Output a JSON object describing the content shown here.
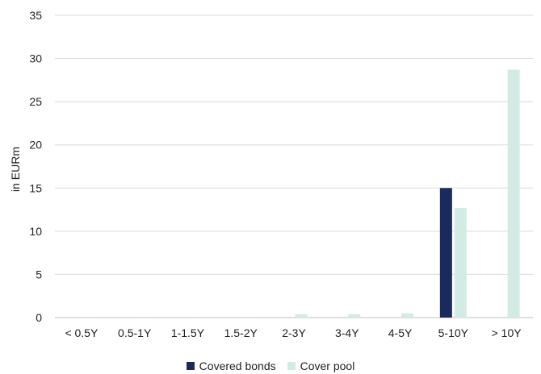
{
  "chart_data": {
    "type": "bar",
    "categories": [
      "< 0.5Y",
      "0.5-1Y",
      "1-1.5Y",
      "1.5-2Y",
      "2-3Y",
      "3-4Y",
      "4-5Y",
      "5-10Y",
      "> 10Y"
    ],
    "series": [
      {
        "name": "Covered bonds",
        "color": "#1b2a5c",
        "values": [
          0,
          0,
          0,
          0,
          0,
          0,
          0,
          15.0,
          0
        ]
      },
      {
        "name": "Cover pool",
        "color": "#d3ebe5",
        "values": [
          0.1,
          0.1,
          0.1,
          0.1,
          0.4,
          0.4,
          0.5,
          12.7,
          28.7
        ]
      }
    ],
    "ylabel": "in EURm",
    "ylim": [
      0,
      35
    ],
    "yticks": [
      0,
      5,
      10,
      15,
      20,
      25,
      30,
      35
    ],
    "grid": true,
    "legend_position": "bottom"
  }
}
